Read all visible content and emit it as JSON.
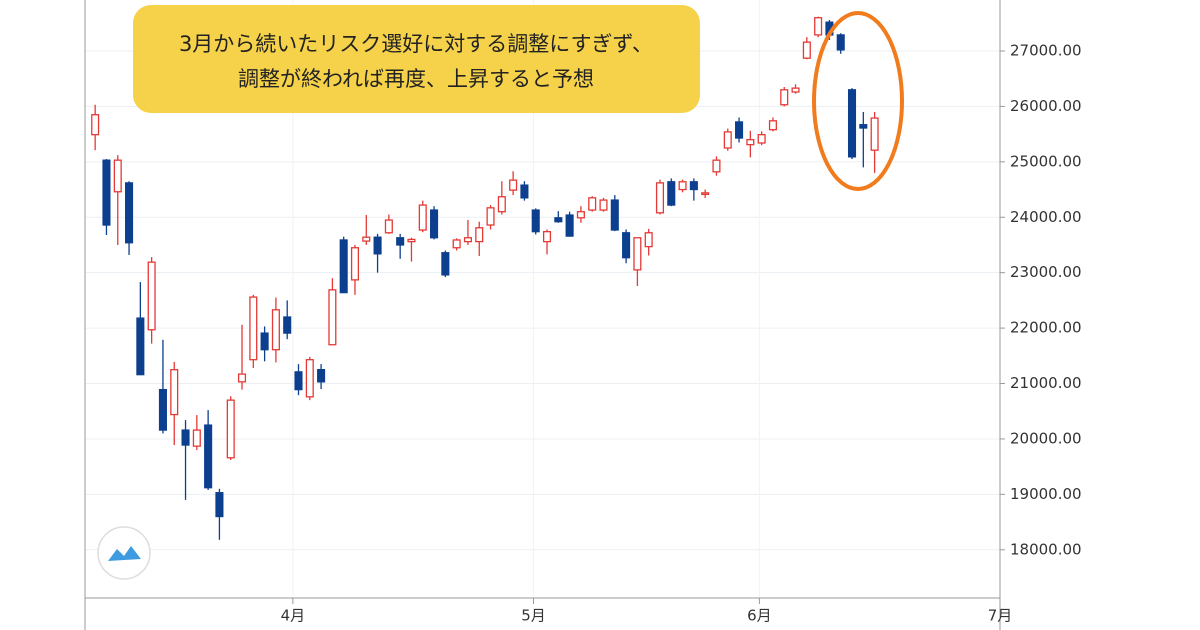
{
  "chart_data": {
    "type": "candlestick",
    "categories": [
      null,
      null,
      null,
      null,
      null,
      null,
      null,
      null,
      null,
      null,
      null,
      null,
      null,
      null,
      null,
      null,
      null,
      null,
      null,
      null,
      null,
      null,
      null,
      null,
      null,
      null,
      null,
      null,
      null,
      null,
      null,
      null,
      null,
      null,
      null,
      null,
      null,
      null,
      null,
      null,
      null,
      null,
      null,
      null,
      null,
      null,
      null,
      null,
      null,
      null,
      null,
      null,
      null,
      null,
      null,
      null,
      null,
      null,
      null,
      null,
      null,
      null,
      null,
      null,
      null,
      null,
      null,
      null,
      null,
      null
    ],
    "open": [
      25490,
      25030,
      24460,
      24620,
      22180,
      21970,
      20890,
      20440,
      20160,
      19870,
      20250,
      19030,
      19660,
      21030,
      21430,
      21910,
      21610,
      22200,
      21210,
      20760,
      21250,
      21700,
      23590,
      22870,
      23570,
      23640,
      23720,
      23630,
      23560,
      23770,
      24130,
      23360,
      23450,
      23560,
      23560,
      23860,
      24100,
      24490,
      24580,
      24130,
      23560,
      23990,
      24040,
      23990,
      24130,
      24130,
      24310,
      23720,
      23050,
      23470,
      24080,
      24640,
      24500,
      24640,
      24420,
      24820,
      25250,
      25720,
      25310,
      25340,
      25580,
      26030,
      26260,
      26870,
      27290,
      27520,
      27290,
      26300,
      25670,
      25210
    ],
    "high": [
      26030,
      25050,
      25120,
      24650,
      22830,
      23280,
      21790,
      21390,
      20340,
      20430,
      20520,
      19100,
      20770,
      22060,
      22600,
      22030,
      22550,
      22500,
      21350,
      21480,
      21350,
      22900,
      23650,
      23500,
      24040,
      23700,
      24050,
      23700,
      23630,
      24300,
      24200,
      23400,
      23620,
      23950,
      23920,
      24220,
      24650,
      24830,
      24650,
      24160,
      23780,
      24110,
      24100,
      24200,
      24380,
      24350,
      24400,
      23780,
      23630,
      23790,
      24680,
      24700,
      24680,
      24700,
      24500,
      25100,
      25600,
      25800,
      25560,
      25550,
      25800,
      26350,
      26400,
      27250,
      27620,
      27560,
      27320,
      26330,
      25900,
      25900
    ],
    "low": [
      25210,
      23680,
      23500,
      23320,
      21160,
      21720,
      20100,
      19890,
      18900,
      19800,
      19080,
      18180,
      19620,
      20890,
      21280,
      21400,
      21380,
      21800,
      20790,
      20700,
      20900,
      21700,
      22640,
      22600,
      23500,
      23000,
      23700,
      23250,
      23200,
      23730,
      23600,
      22920,
      23400,
      23500,
      23300,
      23780,
      24050,
      24400,
      24300,
      23690,
      23330,
      23900,
      23650,
      23900,
      24100,
      24100,
      23750,
      23170,
      22760,
      23310,
      24050,
      24200,
      24450,
      24300,
      24350,
      24750,
      25200,
      25350,
      25080,
      25300,
      25550,
      26000,
      26230,
      26850,
      27250,
      27200,
      26950,
      25050,
      24900,
      24800
    ],
    "close": [
      25850,
      23860,
      25030,
      23540,
      21160,
      23190,
      20160,
      21250,
      19890,
      20160,
      19120,
      18600,
      20700,
      21170,
      22560,
      21610,
      22330,
      21910,
      20890,
      21430,
      21030,
      22690,
      22640,
      23450,
      23640,
      23340,
      23950,
      23500,
      23600,
      24220,
      23630,
      22960,
      23590,
      23630,
      23810,
      24170,
      24370,
      24670,
      24350,
      23740,
      23740,
      23920,
      23660,
      24100,
      24350,
      24310,
      23770,
      23270,
      23630,
      23720,
      24620,
      24220,
      24640,
      24500,
      24440,
      25030,
      25540,
      25430,
      25400,
      25490,
      25740,
      26300,
      26330,
      27160,
      27600,
      27290,
      27020,
      25090,
      25610,
      25790
    ],
    "up_color": "#e53935",
    "down_color": "#0d3f8f",
    "xlim": [
      -0.9,
      80.1
    ],
    "xticks": [
      {
        "value": 17.5,
        "label": "4月"
      },
      {
        "value": 38.8,
        "label": "5月"
      },
      {
        "value": 58.8,
        "label": "6月"
      },
      {
        "value": 80.1,
        "label": "7月"
      }
    ],
    "ylim": [
      17130,
      27920
    ],
    "yticks": [
      {
        "value": 18000,
        "label": "18000.00"
      },
      {
        "value": 19000,
        "label": "19000.00"
      },
      {
        "value": 20000,
        "label": "20000.00"
      },
      {
        "value": 21000,
        "label": "21000.00"
      },
      {
        "value": 22000,
        "label": "22000.00"
      },
      {
        "value": 23000,
        "label": "23000.00"
      },
      {
        "value": 24000,
        "label": "24000.00"
      },
      {
        "value": 25000,
        "label": "25000.00"
      },
      {
        "value": 26000,
        "label": "26000.00"
      },
      {
        "value": 27000,
        "label": "27000.00"
      }
    ],
    "grid": true,
    "annotation": [
      "3月から続いたリスク選好に対する調整にすぎず、",
      "調整が終われば再度、上昇すると予想"
    ]
  }
}
